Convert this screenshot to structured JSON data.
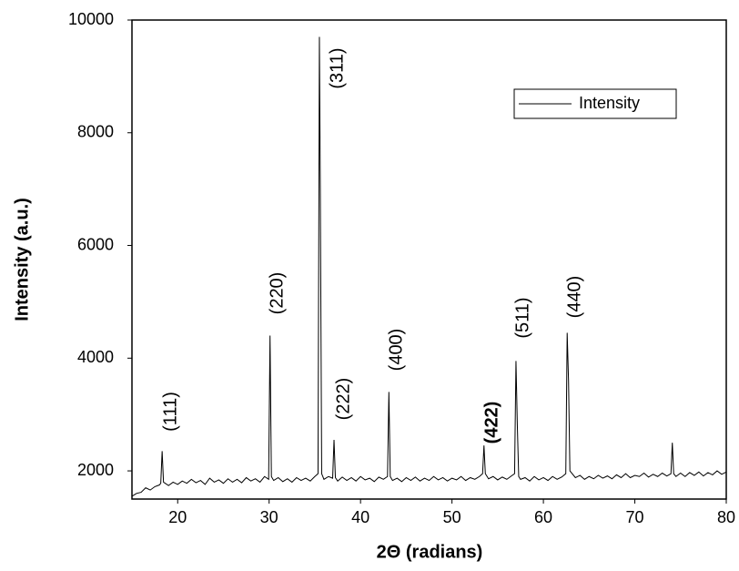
{
  "chart_data": {
    "type": "line",
    "x_label": "2Θ (radians)",
    "y_label": "Intensity (a.u.)",
    "xlim": [
      15,
      80
    ],
    "xticks": [
      20,
      30,
      40,
      50,
      60,
      70,
      80
    ],
    "ylim": [
      1500,
      10000
    ],
    "yticks": [
      2000,
      4000,
      6000,
      8000,
      10000
    ],
    "legend": "upper right",
    "annotations": [
      "(111)",
      "(220)",
      "(311)",
      "(222)",
      "(400)",
      "(422)",
      "(511)",
      "(440)"
    ],
    "x": [
      15,
      15.5,
      16,
      16.5,
      17,
      17.5,
      18,
      18.15,
      18.3,
      18.45,
      19,
      19.5,
      20,
      20.5,
      21,
      21.5,
      22,
      22.5,
      23,
      23.5,
      24,
      24.5,
      25,
      25.5,
      26,
      26.5,
      27,
      27.5,
      28,
      28.5,
      29,
      29.5,
      29.95,
      30.1,
      30.25,
      30.5,
      31,
      31.5,
      32,
      32.5,
      33,
      33.5,
      34,
      34.5,
      35,
      35.35,
      35.5,
      35.6,
      35.75,
      36,
      36.5,
      36.95,
      37.1,
      37.25,
      37.5,
      38,
      38.5,
      39,
      39.5,
      40,
      40.5,
      41,
      41.5,
      42,
      42.5,
      42.95,
      43.1,
      43.25,
      43.5,
      44,
      44.5,
      45,
      45.5,
      46,
      46.5,
      47,
      47.5,
      48,
      48.5,
      49,
      49.5,
      50,
      50.5,
      51,
      51.5,
      52,
      52.5,
      53,
      53.35,
      53.5,
      53.65,
      54,
      54.5,
      55,
      55.5,
      56,
      56.5,
      56.85,
      57,
      57.15,
      57.3,
      57.5,
      58,
      58.5,
      59,
      59.5,
      60,
      60.5,
      61,
      61.5,
      62,
      62.45,
      62.6,
      62.75,
      62.9,
      63.5,
      64,
      64.5,
      65,
      65.5,
      66,
      66.5,
      67,
      67.5,
      68,
      68.5,
      69,
      69.5,
      70,
      70.5,
      71,
      71.5,
      72,
      72.5,
      73,
      73.5,
      73.95,
      74.1,
      74.25,
      74.5,
      75,
      75.5,
      76,
      76.5,
      77,
      77.5,
      78,
      78.5,
      79,
      79.5,
      80
    ],
    "series": [
      {
        "name": "Intensity",
        "color": "#000000",
        "values": [
          1550,
          1600,
          1620,
          1700,
          1660,
          1720,
          1750,
          1780,
          2350,
          1800,
          1740,
          1800,
          1760,
          1820,
          1780,
          1850,
          1790,
          1830,
          1760,
          1870,
          1800,
          1840,
          1780,
          1860,
          1800,
          1850,
          1790,
          1880,
          1820,
          1860,
          1800,
          1900,
          1850,
          4400,
          1900,
          1830,
          1880,
          1810,
          1860,
          1800,
          1880,
          1830,
          1870,
          1820,
          1900,
          1950,
          9700,
          7000,
          1950,
          1850,
          1900,
          1870,
          2550,
          1880,
          1820,
          1890,
          1830,
          1880,
          1820,
          1900,
          1840,
          1870,
          1810,
          1890,
          1850,
          1900,
          3400,
          1900,
          1830,
          1870,
          1810,
          1880,
          1830,
          1890,
          1820,
          1870,
          1830,
          1900,
          1840,
          1880,
          1820,
          1870,
          1840,
          1900,
          1830,
          1880,
          1850,
          1900,
          1950,
          2450,
          1950,
          1860,
          1900,
          1840,
          1890,
          1850,
          1910,
          1950,
          3950,
          2800,
          1900,
          1850,
          1880,
          1820,
          1900,
          1840,
          1880,
          1830,
          1900,
          1850,
          1890,
          1950,
          4450,
          3600,
          2000,
          1880,
          1920,
          1850,
          1900,
          1860,
          1920,
          1870,
          1910,
          1860,
          1930,
          1880,
          1950,
          1880,
          1920,
          1900,
          1960,
          1890,
          1940,
          1900,
          1960,
          1910,
          1950,
          2500,
          1950,
          1900,
          1960,
          1900,
          1970,
          1920,
          1980,
          1910,
          1970,
          1930,
          2000,
          1940,
          1980
        ]
      }
    ]
  }
}
